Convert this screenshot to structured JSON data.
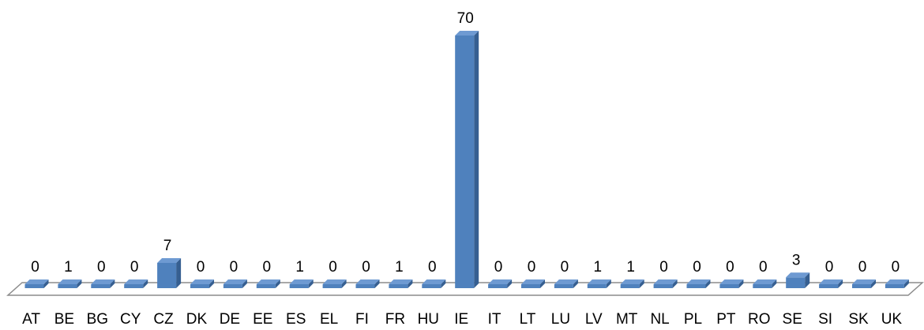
{
  "chart_data": {
    "type": "bar",
    "style": "3d-column",
    "categories": [
      "AT",
      "BE",
      "BG",
      "CY",
      "CZ",
      "DK",
      "DE",
      "EE",
      "ES",
      "EL",
      "FI",
      "FR",
      "HU",
      "IE",
      "IT",
      "LT",
      "LU",
      "LV",
      "MT",
      "NL",
      "PL",
      "PT",
      "RO",
      "SE",
      "SI",
      "SK",
      "UK"
    ],
    "values": [
      0,
      1,
      0,
      0,
      7,
      0,
      0,
      0,
      1,
      0,
      0,
      1,
      0,
      70,
      0,
      0,
      0,
      1,
      1,
      0,
      0,
      0,
      0,
      3,
      0,
      0,
      0
    ],
    "title": "",
    "xlabel": "",
    "ylabel": "",
    "ylim": [
      0,
      70
    ],
    "grid": false,
    "legend": "none",
    "data_labels": true,
    "colors": {
      "bar_front": "#4F81BD",
      "bar_top": "#6E9AD2",
      "bar_side": "#365F91",
      "floor_fill": "#FFFFFF",
      "floor_stroke": "#8C8C8C"
    }
  }
}
